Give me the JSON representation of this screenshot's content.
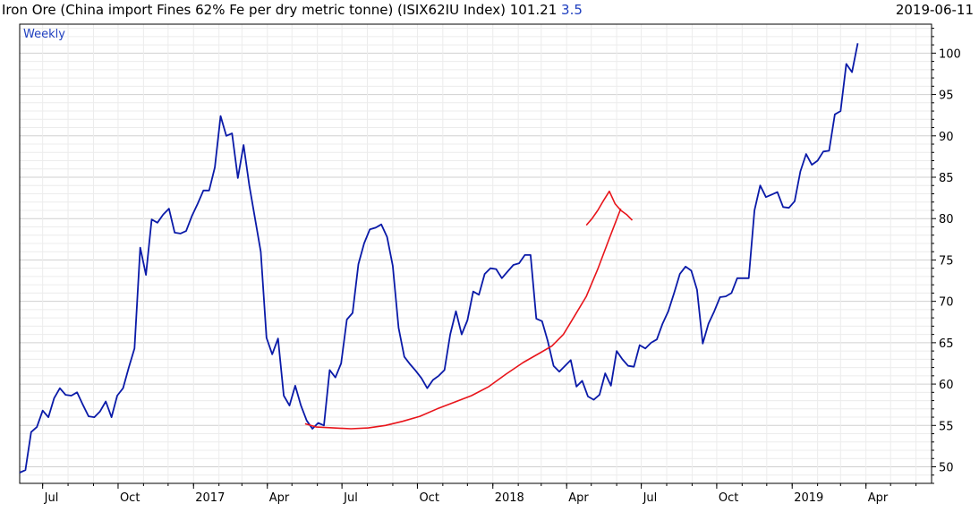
{
  "chart_data": {
    "type": "line",
    "title": "Iron Ore (China import Fines 62% Fe per dry metric tonne) (ISIX62IU Index)",
    "last_value": "101.21",
    "change": "3.5",
    "date": "2019-06-11",
    "frequency_label": "Weekly",
    "ylim": [
      48,
      103.5
    ],
    "y_ticks": [
      50,
      55,
      60,
      65,
      70,
      75,
      80,
      85,
      90,
      95,
      100
    ],
    "x_start": "2016-06-03",
    "x_end": "2019-06-20",
    "x_ticks": [
      {
        "date": "2016-07-01",
        "label": "Jul"
      },
      {
        "date": "2016-10-01",
        "label": "Oct"
      },
      {
        "date": "2017-01-01",
        "label": "2017"
      },
      {
        "date": "2017-04-01",
        "label": "Apr"
      },
      {
        "date": "2017-07-01",
        "label": "Jul"
      },
      {
        "date": "2017-10-01",
        "label": "Oct"
      },
      {
        "date": "2018-01-01",
        "label": "2018"
      },
      {
        "date": "2018-04-01",
        "label": "Apr"
      },
      {
        "date": "2018-07-01",
        "label": "Jul"
      },
      {
        "date": "2018-10-01",
        "label": "Oct"
      },
      {
        "date": "2019-01-01",
        "label": "2019"
      },
      {
        "date": "2019-04-01",
        "label": "Apr"
      }
    ],
    "grid": true,
    "series": [
      {
        "color": "#0a1aa8",
        "points": [
          [
            "2016-06-03",
            49.3
          ],
          [
            "2016-06-10",
            49.6
          ],
          [
            "2016-06-17",
            54.2
          ],
          [
            "2016-06-24",
            54.8
          ],
          [
            "2016-07-01",
            56.8
          ],
          [
            "2016-07-08",
            56.0
          ],
          [
            "2016-07-15",
            58.3
          ],
          [
            "2016-07-22",
            59.5
          ],
          [
            "2016-07-29",
            58.7
          ],
          [
            "2016-08-05",
            58.6
          ],
          [
            "2016-08-12",
            59.0
          ],
          [
            "2016-08-19",
            57.5
          ],
          [
            "2016-08-26",
            56.1
          ],
          [
            "2016-09-02",
            56.0
          ],
          [
            "2016-09-09",
            56.7
          ],
          [
            "2016-09-16",
            57.9
          ],
          [
            "2016-09-23",
            56.0
          ],
          [
            "2016-09-30",
            58.6
          ],
          [
            "2016-10-07",
            59.5
          ],
          [
            "2016-10-14",
            62.0
          ],
          [
            "2016-10-21",
            64.3
          ],
          [
            "2016-10-28",
            76.5
          ],
          [
            "2016-11-04",
            73.2
          ],
          [
            "2016-11-11",
            79.9
          ],
          [
            "2016-11-18",
            79.5
          ],
          [
            "2016-11-25",
            80.5
          ],
          [
            "2016-12-02",
            81.2
          ],
          [
            "2016-12-09",
            78.3
          ],
          [
            "2016-12-16",
            78.2
          ],
          [
            "2016-12-23",
            78.5
          ],
          [
            "2016-12-30",
            80.3
          ],
          [
            "2017-01-06",
            81.8
          ],
          [
            "2017-01-13",
            83.4
          ],
          [
            "2017-01-20",
            83.4
          ],
          [
            "2017-01-27",
            86.2
          ],
          [
            "2017-02-03",
            92.4
          ],
          [
            "2017-02-10",
            90.0
          ],
          [
            "2017-02-17",
            90.3
          ],
          [
            "2017-02-24",
            84.9
          ],
          [
            "2017-03-03",
            88.9
          ],
          [
            "2017-03-10",
            84.0
          ],
          [
            "2017-03-17",
            80.0
          ],
          [
            "2017-03-24",
            76.0
          ],
          [
            "2017-03-31",
            65.6
          ],
          [
            "2017-04-07",
            63.6
          ],
          [
            "2017-04-14",
            65.5
          ],
          [
            "2017-04-21",
            58.6
          ],
          [
            "2017-04-28",
            57.4
          ],
          [
            "2017-05-05",
            59.8
          ],
          [
            "2017-05-12",
            57.4
          ],
          [
            "2017-05-19",
            55.6
          ],
          [
            "2017-05-26",
            54.6
          ],
          [
            "2017-06-02",
            55.3
          ],
          [
            "2017-06-09",
            55.0
          ],
          [
            "2017-06-16",
            61.7
          ],
          [
            "2017-06-23",
            60.8
          ],
          [
            "2017-06-30",
            62.5
          ],
          [
            "2017-07-07",
            67.8
          ],
          [
            "2017-07-14",
            68.6
          ],
          [
            "2017-07-21",
            74.5
          ],
          [
            "2017-07-28",
            77.0
          ],
          [
            "2017-08-04",
            78.7
          ],
          [
            "2017-08-11",
            78.9
          ],
          [
            "2017-08-18",
            79.3
          ],
          [
            "2017-08-25",
            77.8
          ],
          [
            "2017-09-01",
            74.3
          ],
          [
            "2017-09-08",
            66.8
          ],
          [
            "2017-09-15",
            63.3
          ],
          [
            "2017-09-22",
            62.4
          ],
          [
            "2017-09-29",
            61.6
          ],
          [
            "2017-10-06",
            60.7
          ],
          [
            "2017-10-13",
            59.5
          ],
          [
            "2017-10-20",
            60.5
          ],
          [
            "2017-10-27",
            61.0
          ],
          [
            "2017-11-03",
            61.7
          ],
          [
            "2017-11-10",
            66.0
          ],
          [
            "2017-11-17",
            68.8
          ],
          [
            "2017-11-24",
            66.0
          ],
          [
            "2017-12-01",
            67.7
          ],
          [
            "2017-12-08",
            71.2
          ],
          [
            "2017-12-15",
            70.8
          ],
          [
            "2017-12-22",
            73.3
          ],
          [
            "2017-12-29",
            74.0
          ],
          [
            "2018-01-05",
            73.9
          ],
          [
            "2018-01-12",
            72.8
          ],
          [
            "2018-01-19",
            73.6
          ],
          [
            "2018-01-26",
            74.4
          ],
          [
            "2018-02-02",
            74.6
          ],
          [
            "2018-02-09",
            75.6
          ],
          [
            "2018-02-16",
            75.6
          ],
          [
            "2018-02-23",
            67.9
          ],
          [
            "2018-03-02",
            67.6
          ],
          [
            "2018-03-09",
            65.2
          ],
          [
            "2018-03-16",
            62.2
          ],
          [
            "2018-03-23",
            61.5
          ],
          [
            "2018-03-30",
            62.2
          ],
          [
            "2018-04-06",
            62.9
          ],
          [
            "2018-04-13",
            59.7
          ],
          [
            "2018-04-20",
            60.4
          ],
          [
            "2018-04-27",
            58.5
          ],
          [
            "2018-05-04",
            58.1
          ],
          [
            "2018-05-11",
            58.7
          ],
          [
            "2018-05-18",
            61.3
          ],
          [
            "2018-05-25",
            59.8
          ],
          [
            "2018-06-01",
            64.0
          ],
          [
            "2018-06-08",
            63.0
          ],
          [
            "2018-06-15",
            62.2
          ],
          [
            "2018-06-22",
            62.1
          ],
          [
            "2018-06-29",
            64.7
          ],
          [
            "2018-07-06",
            64.3
          ],
          [
            "2018-07-13",
            65.0
          ],
          [
            "2018-07-20",
            65.4
          ],
          [
            "2018-07-27",
            67.3
          ],
          [
            "2018-08-03",
            68.8
          ],
          [
            "2018-08-10",
            71.0
          ],
          [
            "2018-08-17",
            73.3
          ],
          [
            "2018-08-24",
            74.2
          ],
          [
            "2018-08-31",
            73.7
          ],
          [
            "2018-09-07",
            71.4
          ],
          [
            "2018-09-14",
            64.9
          ],
          [
            "2018-09-21",
            67.3
          ],
          [
            "2018-09-28",
            68.8
          ],
          [
            "2018-10-05",
            70.5
          ],
          [
            "2018-10-12",
            70.6
          ],
          [
            "2018-10-19",
            71.0
          ],
          [
            "2018-10-26",
            72.8
          ],
          [
            "2018-11-02",
            72.8
          ],
          [
            "2018-11-09",
            72.8
          ],
          [
            "2018-11-16",
            81.0
          ],
          [
            "2018-11-23",
            84.0
          ],
          [
            "2018-11-30",
            82.6
          ],
          [
            "2018-12-07",
            82.9
          ],
          [
            "2018-12-14",
            83.2
          ],
          [
            "2018-12-21",
            81.4
          ],
          [
            "2018-12-28",
            81.3
          ],
          [
            "2019-01-04",
            82.1
          ],
          [
            "2019-01-11",
            85.7
          ],
          [
            "2019-01-18",
            87.8
          ],
          [
            "2019-01-25",
            86.5
          ],
          [
            "2019-02-01",
            87.0
          ],
          [
            "2019-02-08",
            88.1
          ],
          [
            "2019-02-15",
            88.2
          ],
          [
            "2019-02-22",
            92.6
          ],
          [
            "2019-03-01",
            93.0
          ],
          [
            "2019-03-08",
            98.7
          ],
          [
            "2019-03-15",
            97.7
          ],
          [
            "2019-03-22",
            101.2
          ]
        ]
      },
      {
        "color": "#e8141a",
        "points": [
          [
            "2017-05-17",
            55.2
          ],
          [
            "2017-05-31",
            54.8
          ],
          [
            "2017-06-21",
            54.7
          ],
          [
            "2017-07-12",
            54.6
          ],
          [
            "2017-08-02",
            54.7
          ],
          [
            "2017-08-23",
            55.0
          ],
          [
            "2017-09-13",
            55.5
          ],
          [
            "2017-10-04",
            56.1
          ],
          [
            "2017-10-25",
            57.0
          ],
          [
            "2017-11-15",
            57.8
          ],
          [
            "2017-12-06",
            58.6
          ],
          [
            "2017-12-27",
            59.7
          ],
          [
            "2018-01-17",
            61.2
          ],
          [
            "2018-02-07",
            62.6
          ],
          [
            "2018-02-28",
            63.8
          ],
          [
            "2018-03-14",
            64.6
          ],
          [
            "2018-03-28",
            66.0
          ],
          [
            "2018-04-11",
            68.3
          ],
          [
            "2018-04-25",
            70.6
          ],
          [
            "2018-05-09",
            73.9
          ],
          [
            "2018-05-23",
            77.6
          ],
          [
            "2018-06-06",
            81.2
          ]
        ]
      },
      {
        "color": "#e8141a",
        "points": [
          [
            "2018-04-25",
            79.2
          ],
          [
            "2018-05-02",
            80.0
          ],
          [
            "2018-05-09",
            81.0
          ],
          [
            "2018-05-16",
            82.2
          ],
          [
            "2018-05-23",
            83.3
          ],
          [
            "2018-05-30",
            81.8
          ],
          [
            "2018-06-06",
            81.0
          ],
          [
            "2018-06-13",
            80.5
          ],
          [
            "2018-06-20",
            79.8
          ]
        ]
      }
    ]
  }
}
